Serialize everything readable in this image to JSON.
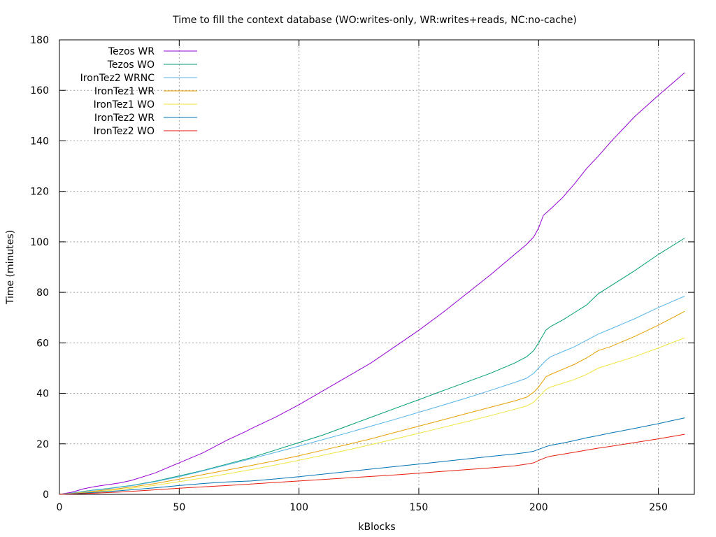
{
  "chart_data": {
    "type": "line",
    "title": "Time to fill the context database (WO:writes-only, WR:writes+reads, NC:no-cache)",
    "xlabel": "kBlocks",
    "ylabel": "Time (minutes)",
    "xlim": [
      0,
      265
    ],
    "ylim": [
      0,
      180
    ],
    "xticks": [
      0,
      50,
      100,
      150,
      200,
      250
    ],
    "yticks": [
      0,
      20,
      40,
      60,
      80,
      100,
      120,
      140,
      160,
      180
    ],
    "grid": true,
    "legend_position": "top-left",
    "series": [
      {
        "name": "Tezos WR",
        "color": "#9400d3",
        "x": [
          0,
          5,
          10,
          15,
          20,
          25,
          30,
          40,
          50,
          60,
          70,
          78,
          80,
          90,
          100,
          110,
          120,
          130,
          140,
          150,
          160,
          170,
          180,
          190,
          195,
          198,
          200,
          202,
          205,
          210,
          215,
          220,
          225,
          230,
          240,
          250,
          261
        ],
        "y": [
          0,
          0.8,
          2.2,
          3.1,
          3.8,
          4.5,
          5.5,
          8.5,
          12.5,
          16.5,
          21.5,
          25,
          26,
          30.5,
          35.5,
          41,
          46.5,
          52,
          58.5,
          65,
          72,
          79.5,
          87,
          95,
          99,
          102,
          105.5,
          110.5,
          113,
          117.5,
          123,
          129,
          134,
          139.5,
          149.5,
          158,
          167
        ]
      },
      {
        "name": "Tezos WO",
        "color": "#009e73",
        "x": [
          0,
          5,
          10,
          15,
          20,
          25,
          30,
          40,
          50,
          60,
          70,
          80,
          90,
          100,
          110,
          120,
          130,
          140,
          150,
          160,
          170,
          180,
          190,
          195,
          198,
          200,
          203,
          205,
          210,
          215,
          220,
          225,
          230,
          240,
          250,
          261
        ],
        "y": [
          0,
          0.5,
          1.2,
          1.8,
          2.3,
          2.9,
          3.5,
          5.2,
          7.3,
          9.5,
          12,
          14.5,
          17.5,
          20.5,
          23.5,
          27,
          30.5,
          34,
          37.5,
          41,
          44.5,
          48,
          52,
          54.5,
          57,
          60,
          65,
          66.5,
          69,
          72,
          75,
          79.5,
          82.5,
          88.5,
          95,
          101.5
        ]
      },
      {
        "name": "IronTez2 WRNC",
        "color": "#56b4e9",
        "x": [
          0,
          5,
          10,
          15,
          20,
          25,
          30,
          40,
          50,
          60,
          70,
          80,
          90,
          100,
          110,
          120,
          130,
          140,
          150,
          160,
          170,
          180,
          190,
          195,
          198,
          200,
          203,
          205,
          210,
          215,
          220,
          225,
          230,
          240,
          250,
          261
        ],
        "y": [
          0,
          0.5,
          1.1,
          1.7,
          2.2,
          2.8,
          3.4,
          5.0,
          7.0,
          9.3,
          11.7,
          14.1,
          16.6,
          19.1,
          21.7,
          24.3,
          27,
          29.7,
          32.5,
          35.3,
          38.2,
          41.2,
          44.3,
          46,
          48,
          50,
          53,
          54.5,
          56.5,
          58.5,
          61,
          63.5,
          65.5,
          69.5,
          74,
          78.5
        ]
      },
      {
        "name": "IronTez1 WR",
        "color": "#e69f00",
        "x": [
          0,
          5,
          10,
          15,
          20,
          25,
          30,
          40,
          50,
          60,
          70,
          80,
          90,
          100,
          110,
          120,
          130,
          140,
          150,
          160,
          170,
          180,
          190,
          195,
          198,
          200,
          203,
          205,
          210,
          215,
          220,
          225,
          230,
          240,
          250,
          261
        ],
        "y": [
          0,
          0.3,
          0.8,
          1.3,
          1.8,
          2.3,
          2.9,
          4.3,
          6.0,
          7.8,
          9.6,
          11.4,
          13.3,
          15.3,
          17.5,
          19.7,
          22,
          24.5,
          27,
          29.5,
          32,
          34.5,
          37,
          38.5,
          40.5,
          42.5,
          46.5,
          47.5,
          49.5,
          51.5,
          54,
          57,
          58.5,
          62.5,
          67,
          72.5
        ]
      },
      {
        "name": "IronTez1 WO",
        "color": "#f0e442",
        "x": [
          0,
          5,
          10,
          15,
          20,
          25,
          30,
          40,
          50,
          60,
          70,
          80,
          90,
          100,
          110,
          120,
          130,
          140,
          150,
          160,
          170,
          180,
          190,
          195,
          198,
          200,
          203,
          205,
          210,
          215,
          220,
          225,
          230,
          240,
          250,
          261
        ],
        "y": [
          0,
          0.2,
          0.6,
          1.0,
          1.4,
          1.9,
          2.4,
          3.6,
          5.0,
          6.5,
          8.1,
          9.8,
          11.6,
          13.5,
          15.5,
          17.5,
          19.7,
          21.9,
          24.2,
          26.5,
          28.8,
          31.2,
          33.7,
          35,
          36.5,
          38.5,
          41.5,
          42.5,
          44,
          45.5,
          47.5,
          50,
          51.5,
          54.5,
          58,
          62
        ]
      },
      {
        "name": "IronTez2 WR",
        "color": "#0072b2",
        "x": [
          0,
          5,
          10,
          15,
          20,
          25,
          30,
          40,
          50,
          60,
          70,
          80,
          90,
          100,
          110,
          120,
          130,
          140,
          150,
          160,
          170,
          180,
          190,
          195,
          198,
          200,
          203,
          205,
          210,
          215,
          220,
          225,
          230,
          240,
          250,
          261
        ],
        "y": [
          0,
          0.2,
          0.5,
          0.8,
          1.1,
          1.4,
          1.8,
          2.6,
          3.5,
          4.3,
          4.9,
          5.3,
          6.1,
          7.0,
          8.0,
          9.0,
          10.0,
          11.0,
          12.0,
          13.0,
          14.0,
          15.0,
          16.0,
          16.6,
          17.1,
          17.8,
          18.9,
          19.4,
          20.3,
          21.3,
          22.4,
          23.3,
          24.3,
          26.1,
          28,
          30.3
        ]
      },
      {
        "name": "IronTez2 WO",
        "color": "#e51e10",
        "x": [
          0,
          5,
          10,
          15,
          20,
          25,
          30,
          40,
          50,
          60,
          70,
          80,
          90,
          100,
          110,
          120,
          130,
          140,
          150,
          160,
          170,
          180,
          190,
          195,
          198,
          200,
          203,
          205,
          210,
          215,
          220,
          225,
          230,
          240,
          250,
          261
        ],
        "y": [
          0,
          0.1,
          0.3,
          0.5,
          0.7,
          0.9,
          1.2,
          1.8,
          2.4,
          3.0,
          3.5,
          4.1,
          4.7,
          5.3,
          5.9,
          6.5,
          7.1,
          7.7,
          8.4,
          9.1,
          9.8,
          10.5,
          11.3,
          12,
          12.5,
          13.4,
          14.6,
          15.1,
          15.9,
          16.7,
          17.5,
          18.3,
          19,
          20.5,
          22,
          23.8
        ]
      }
    ]
  }
}
